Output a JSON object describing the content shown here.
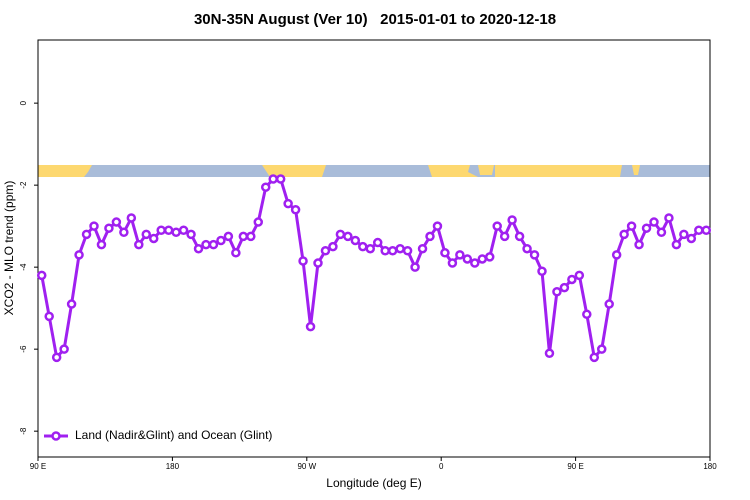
{
  "chart_data": {
    "type": "line",
    "title": "30N-35N August (Ver 10)   2015-01-01 to 2020-12-18",
    "xlabel": "Longitude (deg E)",
    "ylabel": "XCO2 - MLO trend (ppm)",
    "xlim": [
      90,
      540
    ],
    "xticks": [
      {
        "value": 90,
        "label": "90 E"
      },
      {
        "value": 180,
        "label": "180"
      },
      {
        "value": 270,
        "label": "90 W"
      },
      {
        "value": 360,
        "label": "0"
      },
      {
        "value": 450,
        "label": "90 E"
      },
      {
        "value": 540,
        "label": "180"
      }
    ],
    "ylim": [
      -8.63,
      1.54
    ],
    "yticks": [
      0,
      -2,
      -4,
      -6,
      -8
    ],
    "legend": "bottom-left",
    "x": [
      92.5,
      97.5,
      102.5,
      107.5,
      112.5,
      117.5,
      122.5,
      127.5,
      132.5,
      137.5,
      142.5,
      147.5,
      152.5,
      157.5,
      162.5,
      167.5,
      172.5,
      177.5,
      182.5,
      187.5,
      192.5,
      197.5,
      202.5,
      207.5,
      212.5,
      217.5,
      222.5,
      227.5,
      232.5,
      237.5,
      242.5,
      247.5,
      252.5,
      257.5,
      262.5,
      267.5,
      272.5,
      277.5,
      282.5,
      287.5,
      292.5,
      297.5,
      302.5,
      307.5,
      312.5,
      317.5,
      322.5,
      327.5,
      332.5,
      337.5,
      342.5,
      347.5,
      352.5,
      357.5,
      362.5,
      367.5,
      372.5,
      377.5,
      382.5,
      387.5,
      392.5,
      397.5,
      402.5,
      407.5,
      412.5,
      417.5,
      422.5,
      427.5,
      432.5,
      437.5,
      442.5,
      447.5,
      452.5,
      457.5,
      462.5,
      467.5,
      472.5,
      477.5,
      482.5,
      487.5,
      492.5,
      497.5,
      502.5,
      507.5,
      512.5,
      517.5,
      522.5,
      527.5,
      532.5,
      537.5
    ],
    "series": [
      {
        "name": "Land (Nadir&Glint) and Ocean (Glint)",
        "color": "#a020f0",
        "values": [
          -4.2,
          -5.2,
          -6.2,
          -6.0,
          -4.9,
          -3.7,
          -3.2,
          -3.0,
          -3.45,
          -3.05,
          -2.9,
          -3.15,
          -2.8,
          -3.45,
          -3.2,
          -3.3,
          -3.1,
          -3.1,
          -3.15,
          -3.1,
          -3.2,
          -3.55,
          -3.45,
          -3.45,
          -3.35,
          -3.25,
          -3.65,
          -3.25,
          -3.25,
          -2.9,
          -2.05,
          -1.85,
          -1.85,
          -2.45,
          -2.6,
          -3.85,
          -5.45,
          -3.9,
          -3.6,
          -3.5,
          -3.2,
          -3.25,
          -3.35,
          -3.5,
          -3.55,
          -3.4,
          -3.6,
          -3.6,
          -3.55,
          -3.6,
          -4.0,
          -3.55,
          -3.25,
          -3.0,
          -3.65,
          -3.9,
          -3.7,
          -3.8,
          -3.9,
          -3.8,
          -3.75,
          -3.0,
          -3.25,
          -2.85,
          -3.25,
          -3.55,
          -3.7,
          -4.1,
          -6.1,
          -4.6,
          -4.5,
          -4.3,
          -4.2,
          -5.15,
          -6.2,
          -6.0,
          -4.9,
          -3.7,
          -3.2,
          -3.0,
          -3.45,
          -3.05,
          -2.9,
          -3.15,
          -2.8,
          -3.45,
          -3.2,
          -3.3,
          -3.1,
          -3.1
        ]
      }
    ]
  }
}
